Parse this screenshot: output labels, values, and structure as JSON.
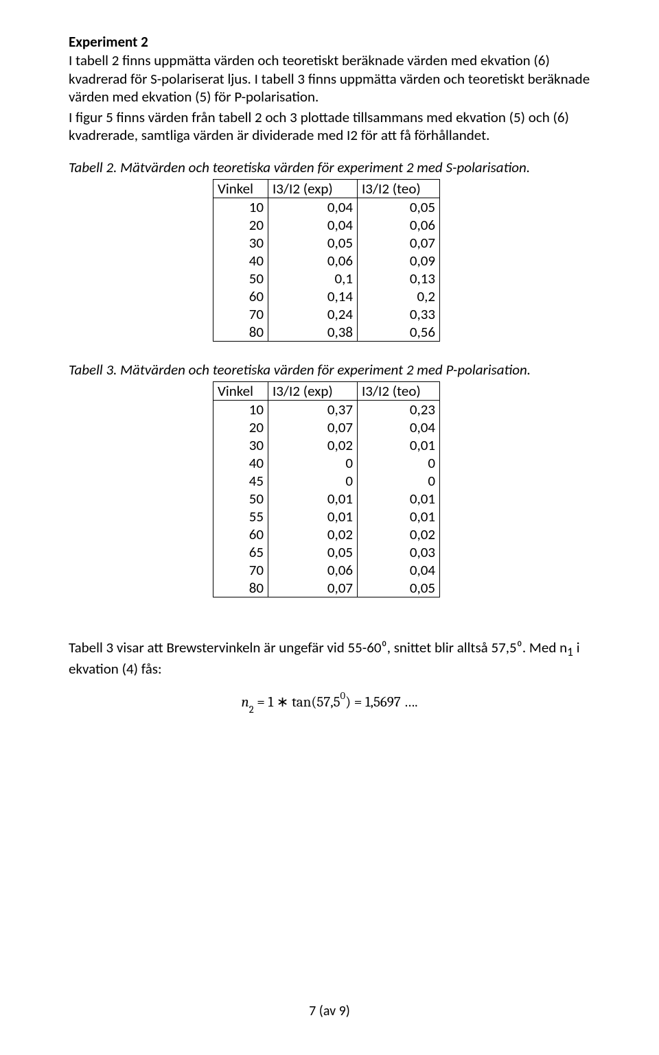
{
  "heading": "Experiment 2",
  "intro": [
    "I tabell 2 finns uppmätta värden och teoretiskt beräknade värden med ekvation (6) kvadrerad för S-polariserat ljus. I tabell 3 finns uppmätta värden och teoretiskt beräknade värden med ekvation (5) för P-polarisation.",
    "I figur 5 finns värden från tabell 2 och 3 plottade tillsammans med ekvation (5) och (6) kvadrerade, samtliga värden är dividerade med I2 för att få förhållandet."
  ],
  "table2": {
    "caption": "Tabell 2. Mätvärden och teoretiska värden för experiment 2 med S-polarisation.",
    "columns": [
      "Vinkel",
      "I3/I2 (exp)",
      "I3/I2 (teo)"
    ],
    "rows": [
      [
        "10",
        "0,04",
        "0,05"
      ],
      [
        "20",
        "0,04",
        "0,06"
      ],
      [
        "30",
        "0,05",
        "0,07"
      ],
      [
        "40",
        "0,06",
        "0,09"
      ],
      [
        "50",
        "0,1",
        "0,13"
      ],
      [
        "60",
        "0,14",
        "0,2"
      ],
      [
        "70",
        "0,24",
        "0,33"
      ],
      [
        "80",
        "0,38",
        "0,56"
      ]
    ]
  },
  "table3": {
    "caption": "Tabell 3. Mätvärden och teoretiska värden för experiment 2 med P-polarisation.",
    "columns": [
      "Vinkel",
      "I3/I2 (exp)",
      "I3/I2 (teo)"
    ],
    "rows": [
      [
        "10",
        "0,37",
        "0,23"
      ],
      [
        "20",
        "0,07",
        "0,04"
      ],
      [
        "30",
        "0,02",
        "0,01"
      ],
      [
        "40",
        "0",
        "0"
      ],
      [
        "45",
        "0",
        "0"
      ],
      [
        "50",
        "0,01",
        "0,01"
      ],
      [
        "55",
        "0,01",
        "0,01"
      ],
      [
        "60",
        "0,02",
        "0,02"
      ],
      [
        "65",
        "0,05",
        "0,03"
      ],
      [
        "70",
        "0,06",
        "0,04"
      ],
      [
        "80",
        "0,07",
        "0,05"
      ]
    ]
  },
  "closing": {
    "text_before": "Tabell 3 visar att Brewstervinkeln är ungefär vid 55-60⁰, snittet blir alltså 57,5⁰. Med n",
    "sub1": "1",
    "text_after": " i ekvation (4) fås:"
  },
  "equation": {
    "lhs_var": "n",
    "lhs_sub": "2",
    "op1": " = 1 ∗ tan(57,5",
    "sup": "0",
    "op2": ") = 1,5697 …."
  },
  "footer": "7 (av 9)"
}
